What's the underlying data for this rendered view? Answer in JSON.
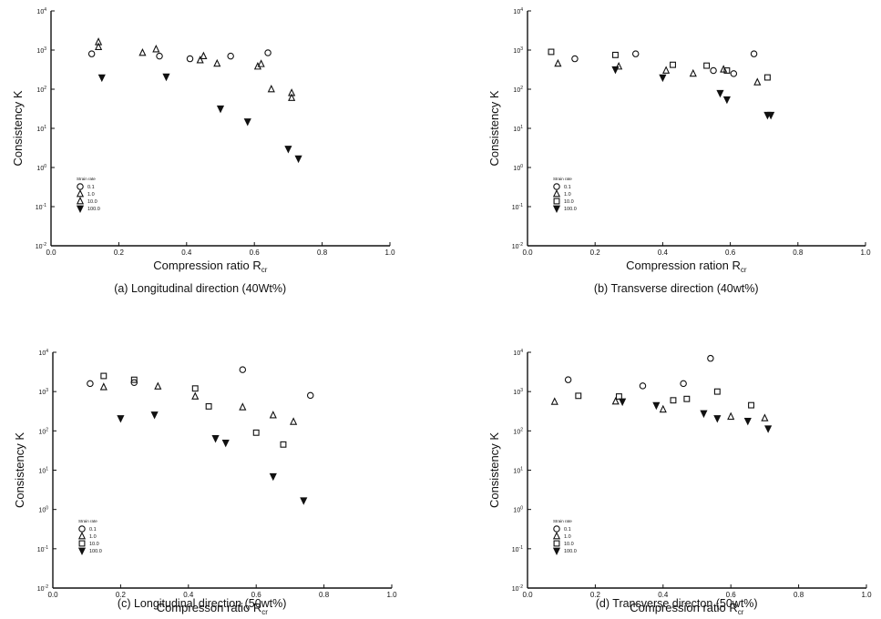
{
  "chart_data": [
    {
      "type": "scatter",
      "caption": "(a) Longitudinal direction (40Wt%)",
      "xlabel": "Compression ratio R",
      "xlabel_sub": "cr",
      "ylabel": "Consistency K",
      "xlim": [
        0.0,
        1.0
      ],
      "xticks": [
        "0.0",
        "0.2",
        "0.4",
        "0.6",
        "0.8",
        "1.0"
      ],
      "ylim_exp": [
        -2,
        4
      ],
      "yscale": "log",
      "yticks": [
        {
          "base": "10",
          "exp": "-2"
        },
        {
          "base": "10",
          "exp": "-1"
        },
        {
          "base": "10",
          "exp": "0"
        },
        {
          "base": "10",
          "exp": "1"
        },
        {
          "base": "10",
          "exp": "2"
        },
        {
          "base": "10",
          "exp": "3"
        },
        {
          "base": "10",
          "exp": "4"
        }
      ],
      "legend_title": "Strain rate",
      "legend_position": "lower-left",
      "series": [
        {
          "label": "0.1",
          "marker": "circle",
          "points": [
            [
              0.12,
              800
            ],
            [
              0.32,
              700
            ],
            [
              0.41,
              600
            ],
            [
              0.53,
              700
            ],
            [
              0.64,
              850
            ]
          ]
        },
        {
          "label": "1.0",
          "marker": "triangle",
          "points": [
            [
              0.14,
              1200
            ],
            [
              0.27,
              850
            ],
            [
              0.45,
              700
            ],
            [
              0.61,
              380
            ],
            [
              0.71,
              80
            ]
          ]
        },
        {
          "label": "10.0",
          "marker": "triangle",
          "points": [
            [
              0.14,
              1600
            ],
            [
              0.31,
              1050
            ],
            [
              0.44,
              550
            ],
            [
              0.49,
              450
            ],
            [
              0.62,
              440
            ],
            [
              0.65,
              100
            ],
            [
              0.71,
              60
            ]
          ]
        },
        {
          "label": "100.0",
          "marker": "triangle-down",
          "points": [
            [
              0.15,
              200
            ],
            [
              0.34,
              210
            ],
            [
              0.5,
              32
            ],
            [
              0.58,
              15
            ],
            [
              0.7,
              3
            ],
            [
              0.73,
              1.7
            ]
          ]
        }
      ]
    },
    {
      "type": "scatter",
      "caption": "(b) Transverse direction (40wt%)",
      "xlabel": "Compression ration R",
      "xlabel_sub": "cr",
      "ylabel": "Consistency K",
      "xlim": [
        0.0,
        1.0
      ],
      "xticks": [
        "0.0",
        "0.2",
        "0.4",
        "0.6",
        "0.8",
        "1.0"
      ],
      "ylim_exp": [
        -2,
        4
      ],
      "yscale": "log",
      "yticks": [
        {
          "base": "10",
          "exp": "-2"
        },
        {
          "base": "10",
          "exp": "-1"
        },
        {
          "base": "10",
          "exp": "0"
        },
        {
          "base": "10",
          "exp": "1"
        },
        {
          "base": "10",
          "exp": "2"
        },
        {
          "base": "10",
          "exp": "3"
        },
        {
          "base": "10",
          "exp": "4"
        }
      ],
      "legend_title": "Strain rate",
      "legend_position": "lower-left",
      "series": [
        {
          "label": "0.1",
          "marker": "circle",
          "points": [
            [
              0.14,
              600
            ],
            [
              0.32,
              800
            ],
            [
              0.55,
              300
            ],
            [
              0.61,
              250
            ],
            [
              0.67,
              800
            ]
          ]
        },
        {
          "label": "1.0",
          "marker": "triangle",
          "points": [
            [
              0.09,
              450
            ],
            [
              0.27,
              380
            ],
            [
              0.41,
              300
            ],
            [
              0.49,
              250
            ],
            [
              0.58,
              320
            ],
            [
              0.68,
              150
            ]
          ]
        },
        {
          "label": "10.0",
          "marker": "square",
          "points": [
            [
              0.07,
              900
            ],
            [
              0.26,
              750
            ],
            [
              0.43,
              420
            ],
            [
              0.53,
              400
            ],
            [
              0.59,
              300
            ],
            [
              0.71,
              200
            ]
          ]
        },
        {
          "label": "100.0",
          "marker": "triangle-down",
          "points": [
            [
              0.26,
              320
            ],
            [
              0.4,
              200
            ],
            [
              0.57,
              80
            ],
            [
              0.59,
              55
            ],
            [
              0.71,
              22
            ],
            [
              0.72,
              22
            ]
          ]
        }
      ]
    },
    {
      "type": "scatter",
      "caption": "(c) Longitudinal direction (50wt%)",
      "xlabel": "Compresson ratio R",
      "xlabel_sub": "cr",
      "ylabel": "Consistency K",
      "xlim": [
        0.0,
        1.0
      ],
      "xticks": [
        "0.0",
        "0.2",
        "0.4",
        "0.6",
        "0.8",
        "1.0"
      ],
      "ylim_exp": [
        -2,
        4
      ],
      "yscale": "log",
      "yticks": [
        {
          "base": "10",
          "exp": "-2"
        },
        {
          "base": "10",
          "exp": "-1"
        },
        {
          "base": "10",
          "exp": "0"
        },
        {
          "base": "10",
          "exp": "1"
        },
        {
          "base": "10",
          "exp": "2"
        },
        {
          "base": "10",
          "exp": "3"
        },
        {
          "base": "10",
          "exp": "4"
        }
      ],
      "legend_title": "Strain rate",
      "legend_position": "lower-left",
      "series": [
        {
          "label": "0.1",
          "marker": "circle",
          "points": [
            [
              0.11,
              1600
            ],
            [
              0.24,
              1700
            ],
            [
              0.56,
              3600
            ],
            [
              0.76,
              800
            ]
          ]
        },
        {
          "label": "1.0",
          "marker": "triangle",
          "points": [
            [
              0.15,
              1300
            ],
            [
              0.31,
              1350
            ],
            [
              0.42,
              750
            ],
            [
              0.56,
              400
            ],
            [
              0.65,
              250
            ],
            [
              0.71,
              170
            ]
          ]
        },
        {
          "label": "10.0",
          "marker": "square",
          "points": [
            [
              0.15,
              2500
            ],
            [
              0.24,
              2000
            ],
            [
              0.42,
              1200
            ],
            [
              0.46,
              420
            ],
            [
              0.6,
              90
            ],
            [
              0.68,
              45
            ]
          ]
        },
        {
          "label": "100.0",
          "marker": "triangle-down",
          "points": [
            [
              0.2,
              210
            ],
            [
              0.3,
              260
            ],
            [
              0.48,
              65
            ],
            [
              0.51,
              50
            ],
            [
              0.65,
              7
            ],
            [
              0.74,
              1.7
            ]
          ]
        }
      ]
    },
    {
      "type": "scatter",
      "caption": "(d) Transverse directon (50wt%)",
      "xlabel": "Compression ratio R",
      "xlabel_sub": "cr",
      "ylabel": "Consistency K",
      "xlim": [
        0.0,
        1.0
      ],
      "xticks": [
        "0.0",
        "0.2",
        "0.4",
        "0.6",
        "0.8",
        "1.0"
      ],
      "ylim_exp": [
        -2,
        4
      ],
      "yscale": "log",
      "yticks": [
        {
          "base": "10",
          "exp": "-2"
        },
        {
          "base": "10",
          "exp": "-1"
        },
        {
          "base": "10",
          "exp": "0"
        },
        {
          "base": "10",
          "exp": "1"
        },
        {
          "base": "10",
          "exp": "2"
        },
        {
          "base": "10",
          "exp": "3"
        },
        {
          "base": "10",
          "exp": "4"
        }
      ],
      "legend_title": "Strain rate",
      "legend_position": "lower-left",
      "series": [
        {
          "label": "0.1",
          "marker": "circle",
          "points": [
            [
              0.12,
              2000
            ],
            [
              0.34,
              1400
            ],
            [
              0.46,
              1600
            ],
            [
              0.54,
              7000
            ]
          ]
        },
        {
          "label": "1.0",
          "marker": "triangle",
          "points": [
            [
              0.08,
              550
            ],
            [
              0.26,
              560
            ],
            [
              0.4,
              350
            ],
            [
              0.6,
              230
            ],
            [
              0.7,
              210
            ]
          ]
        },
        {
          "label": "10.0",
          "marker": "square",
          "points": [
            [
              0.15,
              780
            ],
            [
              0.27,
              750
            ],
            [
              0.43,
              600
            ],
            [
              0.47,
              650
            ],
            [
              0.56,
              1000
            ],
            [
              0.66,
              450
            ]
          ]
        },
        {
          "label": "100.0",
          "marker": "triangle-down",
          "points": [
            [
              0.28,
              560
            ],
            [
              0.38,
              450
            ],
            [
              0.52,
              280
            ],
            [
              0.56,
              210
            ],
            [
              0.65,
              180
            ],
            [
              0.71,
              115
            ]
          ]
        }
      ]
    }
  ]
}
